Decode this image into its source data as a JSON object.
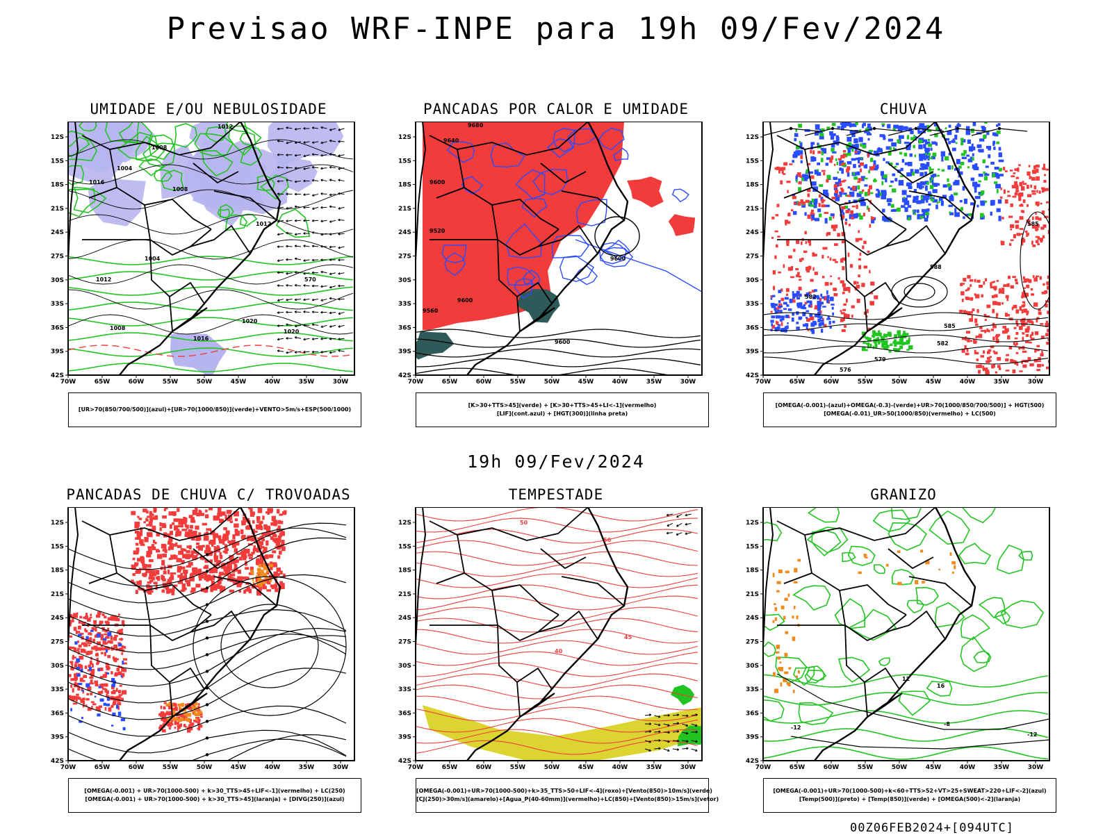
{
  "title": "Previsao WRF-INPE  para 19h 09/Fev/2024",
  "mid_time": "19h 09/Fev/2024",
  "footer": "00Z06FEB2024+[094UTC]",
  "axes": {
    "lat_labels": [
      "12S",
      "15S",
      "18S",
      "21S",
      "24S",
      "27S",
      "30S",
      "33S",
      "36S",
      "39S",
      "42S"
    ],
    "lon_labels": [
      "70W",
      "65W",
      "60W",
      "55W",
      "50W",
      "45W",
      "40W",
      "35W",
      "30W"
    ]
  },
  "panels": [
    {
      "title": "UMIDADE E/OU NEBULOSIDADE",
      "legend": [
        "[UR>70(850/700/500)](azul)+[UR>70(1000/850)](verde)+VENTO>5m/s+ESP(500/1000)"
      ],
      "contours": [
        "1012",
        "1008",
        "1004",
        "1008",
        "1016",
        "1020",
        "1020",
        "570",
        "1012",
        "1004",
        "1008",
        "1012",
        "1016"
      ]
    },
    {
      "title": "PANCADAS POR CALOR E UMIDADE",
      "legend": [
        "[K>30+TTS>45](verde) + [K>30+TTS>45+LI<-1](vermelho)",
        "[LIF](cont.azul) + [HGT(300)](linha preta)"
      ],
      "contours": [
        "9680",
        "9640",
        "9600",
        "9520",
        "9560",
        "9600",
        "9600",
        "9600"
      ]
    },
    {
      "title": "CHUVA",
      "legend": [
        "[OMEGA(-0.001)-(azul)+OMEGA(-0.3)-(verde)+UR>70(1000/850/700/500)] + HGT(500)",
        "[OMEGA(-0.01)_UR>50(1000/850)(vermelho) + LC(500)"
      ],
      "contours": [
        "588",
        "585",
        "582",
        "579",
        "576",
        "585",
        "582"
      ]
    },
    {
      "title": "PANCADAS DE CHUVA C/ TROVOADAS",
      "legend": [
        "[OMEGA(-0.001) + UR>70(1000-500) + k>30_TTS>45+LIF<-1](vermelho) + LC(250)",
        "[OMEGA(-0.001) + UR>70(1000-500) + k>30_TTS>45](laranja) + [DIVG(250)](azul)"
      ],
      "contours": []
    },
    {
      "title": "TEMPESTADE",
      "legend": [
        "[OMEGA(-0.001)+UR>70(1000-500)+k>35_TTS>50+LIF<-4](roxo)+[Vento(850)>10m/s](verde)",
        "[CJ(250)>30m/s](amarelo)+[Agua_P(40-60mm)](vermelho)+LC(850)+[Vento(850)>15m/s](vetor)"
      ],
      "contours": [
        "50",
        "40",
        "50",
        "45"
      ]
    },
    {
      "title": "GRANIZO",
      "legend": [
        "[OMEGA(-0.001)+UR>70(1000-500)+k<60+TTS>52+VT>25+SWEAT>220+LIF<-2](azul)",
        "[Temp(500)](preto) + [Temp(850)](verde) + [OMEGA(500)<-2](laranja)"
      ],
      "contours": [
        "-12",
        "-12",
        "16",
        "12",
        "-8"
      ]
    }
  ],
  "colors": {
    "red": "#f23c3c",
    "green": "#22c422",
    "blue": "#2a4cff",
    "lavender": "#b7b5f0",
    "orange": "#f08a1c",
    "yellow": "#dcd531",
    "teal": "#2f5a5a",
    "black": "#000000"
  }
}
